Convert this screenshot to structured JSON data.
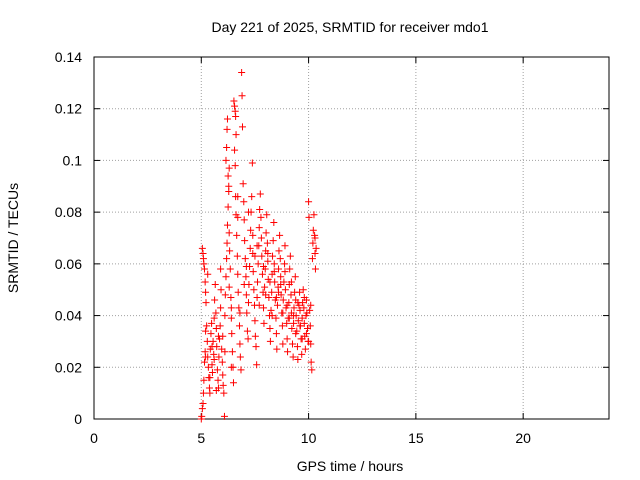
{
  "chart_data": {
    "type": "scatter",
    "title": "Day 221 of 2025, SRMTID for receiver mdo1",
    "xlabel": "GPS time / hours",
    "ylabel": "SRMTID / TECUs",
    "xlim": [
      0,
      24
    ],
    "ylim": [
      0,
      0.14
    ],
    "xticks": [
      0,
      5,
      10,
      15,
      20
    ],
    "xtick_labels": [
      "0",
      "5",
      "10",
      "15",
      "20"
    ],
    "yticks": [
      0,
      0.02,
      0.04,
      0.06,
      0.08,
      0.1,
      0.12,
      0.14
    ],
    "ytick_labels": [
      "0",
      "0.02",
      "0.04",
      "0.06",
      "0.08",
      "0.1",
      "0.12",
      "0.14"
    ],
    "grid": true,
    "marker": "plus",
    "marker_color": "#ff0000",
    "series": [
      {
        "name": "mdo1",
        "points": [
          [
            5.0,
            0.0
          ],
          [
            5.02,
            0.001
          ],
          [
            5.05,
            0.004
          ],
          [
            5.08,
            0.006
          ],
          [
            5.1,
            0.01
          ],
          [
            5.12,
            0.015
          ],
          [
            5.15,
            0.022
          ],
          [
            5.18,
            0.026
          ],
          [
            5.2,
            0.034
          ],
          [
            5.22,
            0.045
          ],
          [
            5.05,
            0.066
          ],
          [
            5.08,
            0.064
          ],
          [
            5.1,
            0.062
          ],
          [
            5.12,
            0.06
          ],
          [
            5.15,
            0.058
          ],
          [
            5.18,
            0.053
          ],
          [
            5.2,
            0.049
          ],
          [
            5.25,
            0.036
          ],
          [
            5.28,
            0.03
          ],
          [
            5.3,
            0.024
          ],
          [
            5.33,
            0.02
          ],
          [
            5.35,
            0.016
          ],
          [
            5.38,
            0.012
          ],
          [
            5.4,
            0.01
          ],
          [
            5.42,
            0.027
          ],
          [
            5.45,
            0.033
          ],
          [
            5.48,
            0.037
          ],
          [
            5.5,
            0.021
          ],
          [
            5.52,
            0.018
          ],
          [
            5.55,
            0.03
          ],
          [
            5.58,
            0.025
          ],
          [
            5.6,
            0.023
          ],
          [
            5.62,
            0.046
          ],
          [
            5.65,
            0.052
          ],
          [
            5.68,
            0.041
          ],
          [
            5.7,
            0.035
          ],
          [
            5.72,
            0.028
          ],
          [
            5.75,
            0.019
          ],
          [
            5.78,
            0.015
          ],
          [
            5.8,
            0.012
          ],
          [
            5.82,
            0.024
          ],
          [
            5.85,
            0.031
          ],
          [
            5.88,
            0.036
          ],
          [
            5.9,
            0.043
          ],
          [
            5.92,
            0.05
          ],
          [
            5.95,
            0.027
          ],
          [
            5.98,
            0.022
          ],
          [
            6.0,
            0.017
          ],
          [
            6.02,
            0.013
          ],
          [
            6.05,
            0.01
          ],
          [
            6.08,
            0.001
          ],
          [
            6.1,
            0.04
          ],
          [
            6.12,
            0.048
          ],
          [
            6.15,
            0.055
          ],
          [
            6.18,
            0.062
          ],
          [
            6.2,
            0.068
          ],
          [
            6.22,
            0.075
          ],
          [
            6.25,
            0.082
          ],
          [
            6.28,
            0.09
          ],
          [
            6.3,
            0.097
          ],
          [
            6.15,
            0.1
          ],
          [
            6.18,
            0.105
          ],
          [
            6.2,
            0.112
          ],
          [
            6.22,
            0.116
          ],
          [
            6.25,
            0.094
          ],
          [
            6.28,
            0.088
          ],
          [
            6.3,
            0.072
          ],
          [
            6.32,
            0.065
          ],
          [
            6.35,
            0.058
          ],
          [
            6.38,
            0.047
          ],
          [
            6.4,
            0.039
          ],
          [
            6.42,
            0.033
          ],
          [
            6.45,
            0.026
          ],
          [
            6.48,
            0.02
          ],
          [
            6.5,
            0.014
          ],
          [
            6.52,
            0.123
          ],
          [
            6.55,
            0.121
          ],
          [
            6.58,
            0.119
          ],
          [
            6.6,
            0.117
          ],
          [
            6.62,
            0.11
          ],
          [
            6.55,
            0.104
          ],
          [
            6.58,
            0.098
          ],
          [
            6.6,
            0.086
          ],
          [
            6.62,
            0.079
          ],
          [
            6.65,
            0.071
          ],
          [
            6.68,
            0.063
          ],
          [
            6.7,
            0.056
          ],
          [
            6.72,
            0.049
          ],
          [
            6.75,
            0.043
          ],
          [
            6.78,
            0.036
          ],
          [
            6.8,
            0.029
          ],
          [
            6.82,
            0.024
          ],
          [
            6.85,
            0.019
          ],
          [
            6.88,
            0.134
          ],
          [
            6.9,
            0.125
          ],
          [
            6.92,
            0.113
          ],
          [
            6.95,
            0.091
          ],
          [
            6.98,
            0.084
          ],
          [
            7.0,
            0.077
          ],
          [
            7.02,
            0.069
          ],
          [
            7.05,
            0.062
          ],
          [
            7.08,
            0.055
          ],
          [
            7.1,
            0.048
          ],
          [
            7.12,
            0.041
          ],
          [
            7.15,
            0.034
          ],
          [
            7.18,
            0.031
          ],
          [
            7.2,
            0.045
          ],
          [
            7.22,
            0.052
          ],
          [
            7.25,
            0.059
          ],
          [
            7.28,
            0.066
          ],
          [
            7.3,
            0.073
          ],
          [
            7.32,
            0.08
          ],
          [
            7.35,
            0.086
          ],
          [
            7.38,
            0.099
          ],
          [
            7.4,
            0.064
          ],
          [
            7.42,
            0.057
          ],
          [
            7.45,
            0.05
          ],
          [
            7.48,
            0.044
          ],
          [
            7.5,
            0.038
          ],
          [
            7.52,
            0.032
          ],
          [
            7.55,
            0.028
          ],
          [
            7.58,
            0.021
          ],
          [
            7.6,
            0.047
          ],
          [
            7.62,
            0.053
          ],
          [
            7.65,
            0.06
          ],
          [
            7.68,
            0.067
          ],
          [
            7.7,
            0.074
          ],
          [
            7.72,
            0.081
          ],
          [
            7.75,
            0.087
          ],
          [
            7.78,
            0.078
          ],
          [
            7.8,
            0.07
          ],
          [
            7.82,
            0.063
          ],
          [
            7.85,
            0.056
          ],
          [
            7.88,
            0.049
          ],
          [
            7.9,
            0.043
          ],
          [
            7.92,
            0.037
          ],
          [
            7.95,
            0.051
          ],
          [
            7.98,
            0.058
          ],
          [
            8.0,
            0.065
          ],
          [
            8.02,
            0.072
          ],
          [
            8.05,
            0.079
          ],
          [
            8.08,
            0.068
          ],
          [
            8.1,
            0.061
          ],
          [
            8.12,
            0.054
          ],
          [
            8.15,
            0.047
          ],
          [
            8.18,
            0.04
          ],
          [
            8.2,
            0.035
          ],
          [
            8.22,
            0.03
          ],
          [
            8.25,
            0.042
          ],
          [
            8.28,
            0.049
          ],
          [
            8.3,
            0.056
          ],
          [
            8.32,
            0.063
          ],
          [
            8.35,
            0.069
          ],
          [
            8.38,
            0.076
          ],
          [
            8.4,
            0.06
          ],
          [
            8.42,
            0.053
          ],
          [
            8.45,
            0.046
          ],
          [
            8.48,
            0.039
          ],
          [
            8.5,
            0.033
          ],
          [
            8.52,
            0.027
          ],
          [
            8.55,
            0.044
          ],
          [
            8.58,
            0.051
          ],
          [
            8.6,
            0.058
          ],
          [
            8.62,
            0.065
          ],
          [
            8.65,
            0.071
          ],
          [
            8.68,
            0.062
          ],
          [
            8.7,
            0.055
          ],
          [
            8.72,
            0.048
          ],
          [
            8.75,
            0.041
          ],
          [
            8.78,
            0.036
          ],
          [
            8.8,
            0.029
          ],
          [
            8.82,
            0.046
          ],
          [
            8.85,
            0.053
          ],
          [
            8.88,
            0.06
          ],
          [
            8.9,
            0.067
          ],
          [
            8.92,
            0.05
          ],
          [
            8.95,
            0.043
          ],
          [
            8.98,
            0.037
          ],
          [
            9.0,
            0.031
          ],
          [
            9.02,
            0.026
          ],
          [
            9.05,
            0.039
          ],
          [
            9.08,
            0.045
          ],
          [
            9.1,
            0.052
          ],
          [
            9.12,
            0.058
          ],
          [
            9.15,
            0.063
          ],
          [
            9.18,
            0.048
          ],
          [
            9.2,
            0.041
          ],
          [
            9.22,
            0.035
          ],
          [
            9.25,
            0.029
          ],
          [
            9.28,
            0.024
          ],
          [
            9.3,
            0.037
          ],
          [
            9.32,
            0.043
          ],
          [
            9.35,
            0.049
          ],
          [
            9.38,
            0.055
          ],
          [
            9.4,
            0.046
          ],
          [
            9.42,
            0.04
          ],
          [
            9.45,
            0.034
          ],
          [
            9.48,
            0.028
          ],
          [
            9.5,
            0.023
          ],
          [
            9.52,
            0.038
          ],
          [
            9.55,
            0.044
          ],
          [
            9.58,
            0.049
          ],
          [
            9.6,
            0.042
          ],
          [
            9.62,
            0.036
          ],
          [
            9.65,
            0.031
          ],
          [
            9.68,
            0.025
          ],
          [
            9.7,
            0.039
          ],
          [
            9.72,
            0.045
          ],
          [
            9.75,
            0.05
          ],
          [
            9.78,
            0.043
          ],
          [
            9.8,
            0.037
          ],
          [
            9.82,
            0.032
          ],
          [
            9.85,
            0.027
          ],
          [
            9.88,
            0.04
          ],
          [
            9.9,
            0.046
          ],
          [
            9.92,
            0.041
          ],
          [
            9.95,
            0.035
          ],
          [
            9.98,
            0.03
          ],
          [
            10.0,
            0.084
          ],
          [
            10.02,
            0.078
          ],
          [
            10.05,
            0.042
          ],
          [
            10.08,
            0.036
          ],
          [
            10.1,
            0.029
          ],
          [
            10.12,
            0.022
          ],
          [
            10.15,
            0.019
          ],
          [
            10.18,
            0.062
          ],
          [
            10.2,
            0.068
          ],
          [
            10.22,
            0.073
          ],
          [
            10.25,
            0.079
          ],
          [
            10.28,
            0.071
          ],
          [
            10.3,
            0.064
          ],
          [
            10.32,
            0.058
          ],
          [
            10.35,
            0.066
          ],
          [
            5.3,
            0.056
          ],
          [
            5.6,
            0.039
          ],
          [
            5.9,
            0.058
          ],
          [
            6.3,
            0.051
          ],
          [
            6.7,
            0.078
          ],
          [
            7.0,
            0.052
          ],
          [
            7.4,
            0.071
          ],
          [
            7.7,
            0.044
          ],
          [
            8.0,
            0.048
          ],
          [
            8.3,
            0.04
          ],
          [
            8.6,
            0.049
          ],
          [
            8.9,
            0.057
          ],
          [
            9.2,
            0.053
          ],
          [
            9.5,
            0.045
          ],
          [
            9.8,
            0.047
          ],
          [
            10.1,
            0.044
          ],
          [
            5.4,
            0.016
          ],
          [
            5.7,
            0.011
          ],
          [
            6.0,
            0.032
          ],
          [
            6.4,
            0.02
          ],
          [
            6.8,
            0.041
          ],
          [
            7.1,
            0.059
          ],
          [
            7.5,
            0.063
          ],
          [
            7.9,
            0.059
          ],
          [
            8.2,
            0.053
          ],
          [
            8.5,
            0.047
          ],
          [
            8.8,
            0.041
          ],
          [
            9.1,
            0.039
          ],
          [
            9.4,
            0.033
          ],
          [
            9.7,
            0.031
          ],
          [
            10.0,
            0.03
          ],
          [
            10.3,
            0.07
          ],
          [
            5.2,
            0.024
          ],
          [
            5.5,
            0.028
          ],
          [
            5.8,
            0.032
          ],
          [
            6.1,
            0.026
          ],
          [
            6.4,
            0.043
          ],
          [
            6.7,
            0.086
          ],
          [
            7.2,
            0.08
          ],
          [
            7.6,
            0.067
          ],
          [
            8.1,
            0.064
          ],
          [
            8.4,
            0.057
          ],
          [
            8.7,
            0.052
          ],
          [
            9.0,
            0.044
          ],
          [
            9.3,
            0.04
          ],
          [
            9.6,
            0.036
          ],
          [
            9.9,
            0.033
          ]
        ]
      }
    ]
  }
}
